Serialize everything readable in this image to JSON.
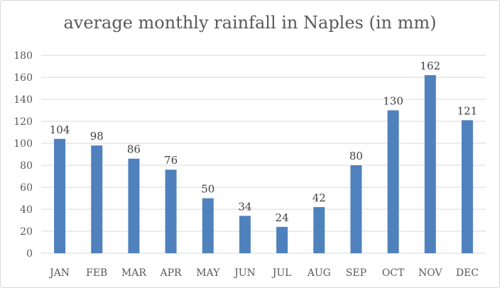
{
  "chart_data": {
    "type": "bar",
    "title": "average monthly rainfall in Naples (in mm)",
    "categories": [
      "JAN",
      "FEB",
      "MAR",
      "APR",
      "MAY",
      "JUN",
      "JUL",
      "AUG",
      "SEP",
      "OCT",
      "NOV",
      "DEC"
    ],
    "values": [
      104,
      98,
      86,
      76,
      50,
      34,
      24,
      42,
      80,
      130,
      162,
      121
    ],
    "ylim": [
      0,
      180
    ],
    "yticks": [
      0,
      20,
      40,
      60,
      80,
      100,
      120,
      140,
      160,
      180
    ],
    "grid": true,
    "legend": "none",
    "bar_color": "#4f81bd",
    "grid_color": "#d9d9d9",
    "text_color": "#595959"
  }
}
